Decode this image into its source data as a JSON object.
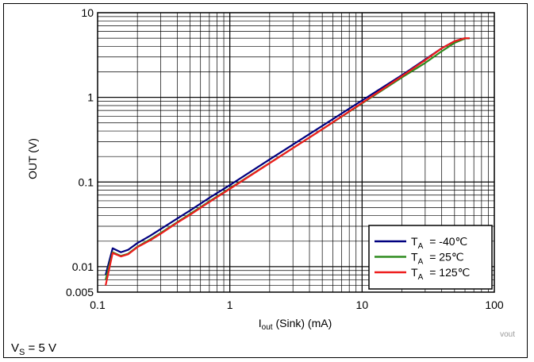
{
  "chart_data": {
    "type": "line",
    "xlabel": {
      "main": "I",
      "sub": "out",
      "rest": " (Sink) (mA)"
    },
    "ylabel": "OUT (V)",
    "x_scale": "log",
    "y_scale": "log",
    "xlim": [
      0.1,
      100
    ],
    "ylim": [
      0.005,
      10
    ],
    "x_ticks": [
      {
        "value": 0.1,
        "label": "0.1"
      },
      {
        "value": 1,
        "label": "1"
      },
      {
        "value": 10,
        "label": "10"
      },
      {
        "value": 100,
        "label": "100"
      }
    ],
    "y_ticks": [
      {
        "value": 0.005,
        "label": "0.005"
      },
      {
        "value": 0.01,
        "label": "0.01"
      },
      {
        "value": 0.1,
        "label": "0.1"
      },
      {
        "value": 1,
        "label": "1"
      },
      {
        "value": 10,
        "label": "10"
      }
    ],
    "grid": true,
    "legend_position": "bottom-right",
    "series": [
      {
        "legend_main": "T",
        "legend_sub": "A",
        "legend_value": "= -40℃",
        "color": "#00007f",
        "x": [
          0.115,
          0.13,
          0.15,
          0.17,
          0.2,
          0.25,
          0.3,
          0.4,
          0.5,
          0.7,
          1,
          2,
          5,
          10,
          20,
          30,
          40,
          50,
          60,
          65
        ],
        "y": [
          0.008,
          0.0165,
          0.0148,
          0.0158,
          0.019,
          0.0232,
          0.0278,
          0.037,
          0.046,
          0.065,
          0.092,
          0.185,
          0.46,
          0.92,
          1.83,
          2.8,
          3.8,
          4.6,
          5.0,
          5.0
        ]
      },
      {
        "legend_main": "T",
        "legend_sub": "A",
        "legend_value": "= 25℃",
        "color": "#2e8b1e",
        "x": [
          0.115,
          0.13,
          0.15,
          0.17,
          0.2,
          0.25,
          0.3,
          0.4,
          0.5,
          0.7,
          1,
          2,
          5,
          10,
          20,
          30,
          40,
          50,
          60,
          65
        ],
        "y": [
          0.007,
          0.0148,
          0.0134,
          0.0142,
          0.0172,
          0.021,
          0.025,
          0.0335,
          0.042,
          0.059,
          0.084,
          0.168,
          0.42,
          0.85,
          1.72,
          2.55,
          3.5,
          4.4,
          4.95,
          5.0
        ]
      },
      {
        "legend_main": "T",
        "legend_sub": "A",
        "legend_value": "= 125℃",
        "color": "#ee1c1c",
        "x": [
          0.115,
          0.13,
          0.15,
          0.17,
          0.2,
          0.25,
          0.3,
          0.4,
          0.5,
          0.7,
          1,
          2,
          5,
          10,
          20,
          30,
          40,
          50,
          60,
          65
        ],
        "y": [
          0.006,
          0.0145,
          0.0132,
          0.014,
          0.017,
          0.0205,
          0.0245,
          0.033,
          0.041,
          0.058,
          0.083,
          0.167,
          0.42,
          0.86,
          1.78,
          2.75,
          3.8,
          4.6,
          5.0,
          5.0
        ]
      }
    ]
  },
  "watermark": "vout",
  "footnote": {
    "main": "V",
    "sub": "S",
    "rest": " = 5 V"
  }
}
